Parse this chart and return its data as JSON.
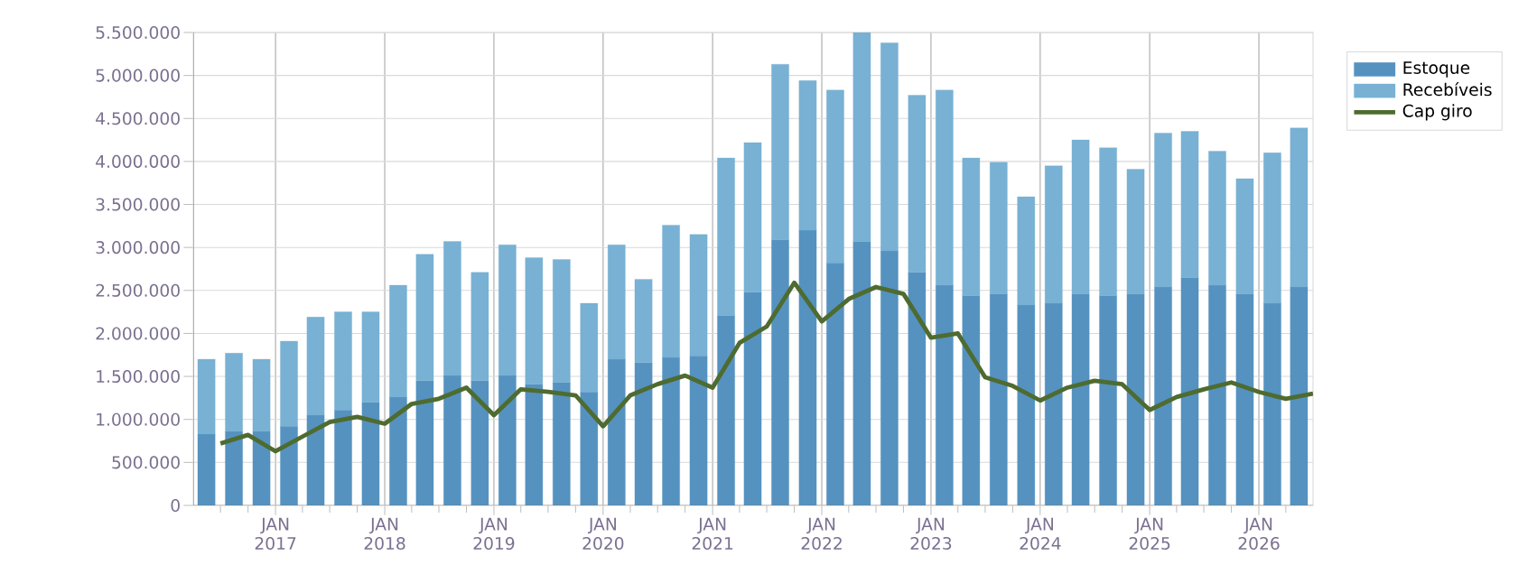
{
  "chart_data": {
    "type": "bar",
    "stacked": true,
    "x": [
      "2016-05-15",
      "2016-08-15",
      "2016-11-15",
      "2017-02-15",
      "2017-05-15",
      "2017-08-15",
      "2017-11-15",
      "2018-02-15",
      "2018-05-15",
      "2018-08-15",
      "2018-11-15",
      "2019-02-15",
      "2019-05-15",
      "2019-08-15",
      "2019-11-15",
      "2020-02-15",
      "2020-05-15",
      "2020-08-15",
      "2020-11-15",
      "2021-02-15",
      "2021-05-15",
      "2021-08-15",
      "2021-11-15",
      "2022-02-15",
      "2022-05-15",
      "2022-08-15",
      "2022-11-15",
      "2023-02-15",
      "2023-05-15",
      "2023-08-15",
      "2023-11-15",
      "2024-02-15",
      "2024-05-15",
      "2024-08-15",
      "2024-11-15",
      "2025-02-15",
      "2025-05-15",
      "2025-08-15",
      "2025-11-15",
      "2026-02-15",
      "2026-05-15"
    ],
    "series": [
      {
        "name": "Estoque",
        "color": "#5592c0",
        "values": [
          830000,
          860000,
          860000,
          920000,
          1050000,
          1110000,
          1200000,
          1260000,
          1450000,
          1510000,
          1450000,
          1510000,
          1410000,
          1430000,
          1320000,
          1700000,
          1660000,
          1720000,
          1740000,
          2210000,
          2480000,
          3090000,
          3200000,
          2820000,
          3070000,
          2960000,
          2710000,
          2560000,
          2440000,
          2460000,
          2330000,
          2350000,
          2460000,
          2440000,
          2460000,
          2540000,
          2650000,
          2560000,
          2460000,
          2350000,
          2540000
        ]
      },
      {
        "name": "Recebíveis",
        "color": "#78b1d3",
        "values": [
          870000,
          910000,
          840000,
          990000,
          1140000,
          1140000,
          1050000,
          1300000,
          1470000,
          1560000,
          1260000,
          1520000,
          1470000,
          1430000,
          1030000,
          1330000,
          970000,
          1540000,
          1410000,
          1830000,
          1740000,
          2040000,
          1740000,
          2010000,
          2430000,
          2420000,
          2060000,
          2270000,
          1600000,
          1530000,
          1260000,
          1600000,
          1790000,
          1720000,
          1450000,
          1790000,
          1700000,
          1560000,
          1340000,
          1750000,
          1850000
        ]
      },
      {
        "name": "Cap giro",
        "type": "line",
        "color": "#4e6b30",
        "x": [
          "2016-07-01",
          "2016-10-01",
          "2017-01-01",
          "2017-04-01",
          "2017-07-01",
          "2017-10-01",
          "2018-01-01",
          "2018-04-01",
          "2018-07-01",
          "2018-10-01",
          "2019-01-01",
          "2019-04-01",
          "2019-07-01",
          "2019-10-01",
          "2020-01-01",
          "2020-04-01",
          "2020-07-01",
          "2020-10-01",
          "2021-01-01",
          "2021-04-01",
          "2021-07-01",
          "2021-10-01",
          "2022-01-01",
          "2022-04-01",
          "2022-07-01",
          "2022-10-01",
          "2023-01-01",
          "2023-04-01",
          "2023-07-01",
          "2023-10-01",
          "2024-01-01",
          "2024-04-01",
          "2024-07-01",
          "2024-10-01",
          "2025-01-01",
          "2025-04-01",
          "2025-07-01",
          "2025-10-01",
          "2026-01-01",
          "2026-04-01",
          "2026-07-01"
        ],
        "values": [
          720000,
          820000,
          630000,
          800000,
          970000,
          1030000,
          950000,
          1180000,
          1240000,
          1370000,
          1050000,
          1350000,
          1320000,
          1280000,
          920000,
          1280000,
          1410000,
          1510000,
          1370000,
          1890000,
          2080000,
          2590000,
          2140000,
          2400000,
          2540000,
          2460000,
          1950000,
          2000000,
          1490000,
          1390000,
          1220000,
          1370000,
          1450000,
          1410000,
          1110000,
          1260000,
          1350000,
          1430000,
          1320000,
          1240000,
          1300000
        ]
      }
    ],
    "xlim": [
      "2016-04-01",
      "2026-07-01"
    ],
    "xticks": [
      {
        "value": "2016-07-01",
        "label": null
      },
      {
        "value": "2016-10-01",
        "label": null
      },
      {
        "value": "2017-01-01",
        "label": "JAN 2017"
      },
      {
        "value": "2017-04-01",
        "label": null
      },
      {
        "value": "2017-07-01",
        "label": null
      },
      {
        "value": "2017-10-01",
        "label": null
      },
      {
        "value": "2018-01-01",
        "label": "JAN 2018"
      },
      {
        "value": "2018-04-01",
        "label": null
      },
      {
        "value": "2018-07-01",
        "label": null
      },
      {
        "value": "2018-10-01",
        "label": null
      },
      {
        "value": "2019-01-01",
        "label": "JAN 2019"
      },
      {
        "value": "2019-04-01",
        "label": null
      },
      {
        "value": "2019-07-01",
        "label": null
      },
      {
        "value": "2019-10-01",
        "label": null
      },
      {
        "value": "2020-01-01",
        "label": "JAN 2020"
      },
      {
        "value": "2020-04-01",
        "label": null
      },
      {
        "value": "2020-07-01",
        "label": null
      },
      {
        "value": "2020-10-01",
        "label": null
      },
      {
        "value": "2021-01-01",
        "label": "JAN 2021"
      },
      {
        "value": "2021-04-01",
        "label": null
      },
      {
        "value": "2021-07-01",
        "label": null
      },
      {
        "value": "2021-10-01",
        "label": null
      },
      {
        "value": "2022-01-01",
        "label": "JAN 2022"
      },
      {
        "value": "2022-04-01",
        "label": null
      },
      {
        "value": "2022-07-01",
        "label": null
      },
      {
        "value": "2022-10-01",
        "label": null
      },
      {
        "value": "2023-01-01",
        "label": "JAN 2023"
      },
      {
        "value": "2023-04-01",
        "label": null
      },
      {
        "value": "2023-07-01",
        "label": null
      },
      {
        "value": "2023-10-01",
        "label": null
      },
      {
        "value": "2024-01-01",
        "label": "JAN 2024"
      },
      {
        "value": "2024-04-01",
        "label": null
      },
      {
        "value": "2024-07-01",
        "label": null
      },
      {
        "value": "2024-10-01",
        "label": null
      },
      {
        "value": "2025-01-01",
        "label": "JAN 2025"
      },
      {
        "value": "2025-04-01",
        "label": null
      },
      {
        "value": "2025-07-01",
        "label": null
      },
      {
        "value": "2025-10-01",
        "label": null
      },
      {
        "value": "2026-01-01",
        "label": "JAN 2026"
      },
      {
        "value": "2026-04-01",
        "label": null
      }
    ],
    "ylim": [
      0,
      5500000
    ],
    "yticks": [
      {
        "value": 0,
        "label": "0"
      },
      {
        "value": 500000,
        "label": "500.000"
      },
      {
        "value": 1000000,
        "label": "1.000.000"
      },
      {
        "value": 1500000,
        "label": "1.500.000"
      },
      {
        "value": 2000000,
        "label": "2.000.000"
      },
      {
        "value": 2500000,
        "label": "2.500.000"
      },
      {
        "value": 3000000,
        "label": "3.000.000"
      },
      {
        "value": 3500000,
        "label": "3.500.000"
      },
      {
        "value": 4000000,
        "label": "4.000.000"
      },
      {
        "value": 4500000,
        "label": "4.500.000"
      },
      {
        "value": 5000000,
        "label": "5.000.000"
      },
      {
        "value": 5500000,
        "label": "5.500.000"
      }
    ],
    "grid": true,
    "legend": "top right"
  }
}
